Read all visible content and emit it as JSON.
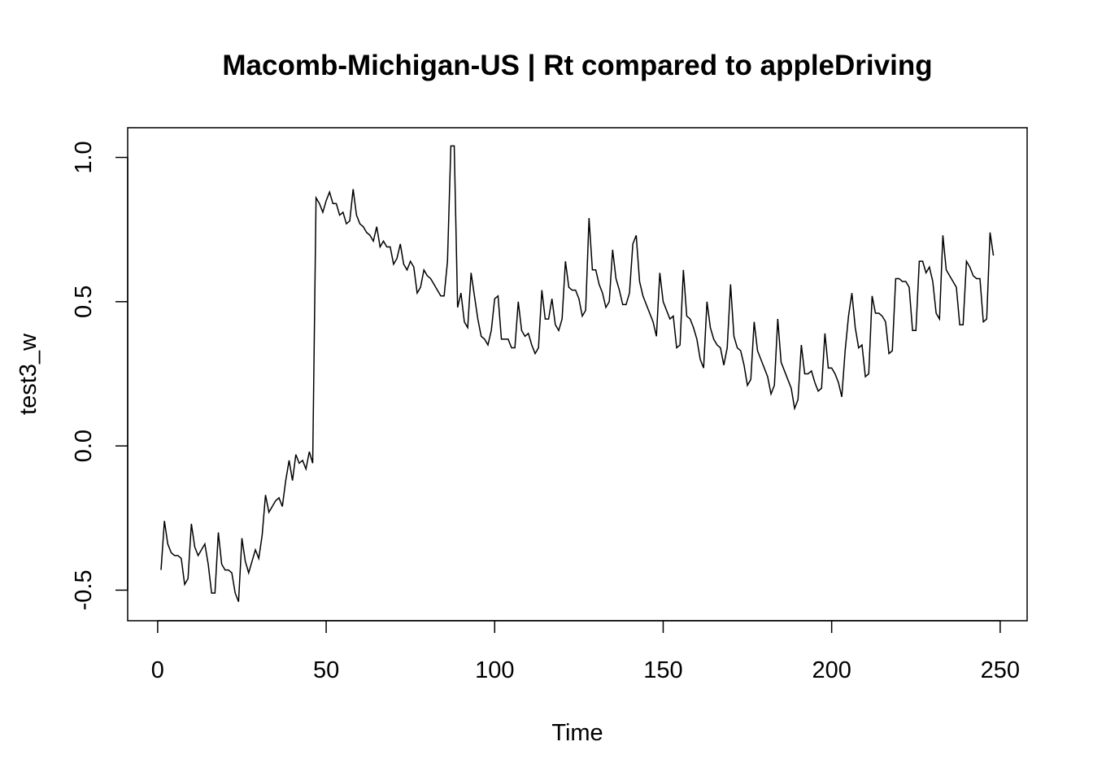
{
  "chart_data": {
    "type": "line",
    "title": "Macomb-Michigan-US | Rt compared to appleDriving",
    "xlabel": "Time",
    "ylabel": "test3_w",
    "color": "#000000",
    "xlim": [
      -8.9,
      258
    ],
    "xticks": [
      0,
      50,
      100,
      150,
      200,
      250
    ],
    "ylim": [
      -0.606,
      1.103
    ],
    "yticks": [
      -0.5,
      {
        "value": 0,
        "label": "0.0"
      },
      0.5,
      {
        "value": 1,
        "label": "1.0"
      }
    ],
    "x": [
      1,
      2,
      3,
      4,
      5,
      6,
      7,
      8,
      9,
      10,
      11,
      12,
      13,
      14,
      15,
      16,
      17,
      18,
      19,
      20,
      21,
      22,
      23,
      24,
      25,
      26,
      27,
      28,
      29,
      30,
      31,
      32,
      33,
      34,
      35,
      36,
      37,
      38,
      39,
      40,
      41,
      42,
      43,
      44,
      45,
      46,
      47,
      48,
      49,
      50,
      51,
      52,
      53,
      54,
      55,
      56,
      57,
      58,
      59,
      60,
      61,
      62,
      63,
      64,
      65,
      66,
      67,
      68,
      69,
      70,
      71,
      72,
      73,
      74,
      75,
      76,
      77,
      78,
      79,
      80,
      81,
      82,
      83,
      84,
      85,
      86,
      87,
      88,
      89,
      90,
      91,
      92,
      93,
      94,
      95,
      96,
      97,
      98,
      99,
      100,
      101,
      102,
      103,
      104,
      105,
      106,
      107,
      108,
      109,
      110,
      111,
      112,
      113,
      114,
      115,
      116,
      117,
      118,
      119,
      120,
      121,
      122,
      123,
      124,
      125,
      126,
      127,
      128,
      129,
      130,
      131,
      132,
      133,
      134,
      135,
      136,
      137,
      138,
      139,
      140,
      141,
      142,
      143,
      144,
      145,
      146,
      147,
      148,
      149,
      150,
      151,
      152,
      153,
      154,
      155,
      156,
      157,
      158,
      159,
      160,
      161,
      162,
      163,
      164,
      165,
      166,
      167,
      168,
      169,
      170,
      171,
      172,
      173,
      174,
      175,
      176,
      177,
      178,
      179,
      180,
      181,
      182,
      183,
      184,
      185,
      186,
      187,
      188,
      189,
      190,
      191,
      192,
      193,
      194,
      195,
      196,
      197,
      198,
      199,
      200,
      201,
      202,
      203,
      204,
      205,
      206,
      207,
      208,
      209,
      210,
      211,
      212,
      213,
      214,
      215,
      216,
      217,
      218,
      219,
      220,
      221,
      222,
      223,
      224,
      225,
      226,
      227,
      228,
      229,
      230,
      231,
      232,
      233,
      234,
      235,
      236,
      237,
      238,
      239,
      240,
      241,
      242,
      243,
      244,
      245,
      246,
      247,
      248
    ],
    "values": [
      -0.43,
      -0.26,
      -0.34,
      -0.37,
      -0.38,
      -0.38,
      -0.39,
      -0.48,
      -0.46,
      -0.27,
      -0.35,
      -0.38,
      -0.36,
      -0.34,
      -0.41,
      -0.51,
      -0.51,
      -0.3,
      -0.41,
      -0.43,
      -0.43,
      -0.44,
      -0.51,
      -0.54,
      -0.32,
      -0.4,
      -0.44,
      -0.4,
      -0.36,
      -0.39,
      -0.31,
      -0.17,
      -0.23,
      -0.21,
      -0.19,
      -0.18,
      -0.21,
      -0.12,
      -0.05,
      -0.12,
      -0.03,
      -0.06,
      -0.05,
      -0.08,
      -0.02,
      -0.06,
      0.86,
      0.84,
      0.81,
      0.85,
      0.88,
      0.84,
      0.84,
      0.8,
      0.81,
      0.77,
      0.78,
      0.89,
      0.8,
      0.77,
      0.76,
      0.74,
      0.73,
      0.71,
      0.76,
      0.69,
      0.71,
      0.69,
      0.69,
      0.63,
      0.65,
      0.7,
      0.63,
      0.61,
      0.64,
      0.62,
      0.53,
      0.55,
      0.61,
      0.59,
      0.58,
      0.56,
      0.54,
      0.52,
      0.52,
      0.64,
      1.04,
      1.04,
      0.48,
      0.53,
      0.43,
      0.41,
      0.6,
      0.52,
      0.44,
      0.38,
      0.37,
      0.35,
      0.4,
      0.51,
      0.52,
      0.37,
      0.37,
      0.37,
      0.34,
      0.34,
      0.5,
      0.4,
      0.38,
      0.39,
      0.35,
      0.32,
      0.34,
      0.54,
      0.44,
      0.44,
      0.51,
      0.42,
      0.4,
      0.44,
      0.64,
      0.55,
      0.54,
      0.54,
      0.51,
      0.45,
      0.47,
      0.79,
      0.61,
      0.61,
      0.56,
      0.53,
      0.48,
      0.5,
      0.68,
      0.58,
      0.54,
      0.49,
      0.49,
      0.53,
      0.7,
      0.73,
      0.57,
      0.52,
      0.49,
      0.46,
      0.43,
      0.38,
      0.6,
      0.5,
      0.47,
      0.44,
      0.45,
      0.34,
      0.35,
      0.61,
      0.45,
      0.44,
      0.41,
      0.37,
      0.3,
      0.27,
      0.5,
      0.41,
      0.37,
      0.35,
      0.34,
      0.28,
      0.34,
      0.56,
      0.38,
      0.34,
      0.33,
      0.28,
      0.21,
      0.23,
      0.43,
      0.33,
      0.3,
      0.27,
      0.24,
      0.18,
      0.21,
      0.44,
      0.29,
      0.26,
      0.23,
      0.2,
      0.13,
      0.16,
      0.35,
      0.25,
      0.25,
      0.26,
      0.22,
      0.19,
      0.2,
      0.39,
      0.27,
      0.27,
      0.25,
      0.22,
      0.17,
      0.33,
      0.45,
      0.53,
      0.41,
      0.34,
      0.35,
      0.24,
      0.25,
      0.52,
      0.46,
      0.46,
      0.45,
      0.43,
      0.32,
      0.33,
      0.58,
      0.58,
      0.57,
      0.57,
      0.55,
      0.4,
      0.4,
      0.64,
      0.64,
      0.6,
      0.62,
      0.57,
      0.46,
      0.44,
      0.73,
      0.61,
      0.59,
      0.57,
      0.55,
      0.42,
      0.42,
      0.64,
      0.62,
      0.59,
      0.58,
      0.58,
      0.43,
      0.44,
      0.74,
      0.66
    ]
  }
}
